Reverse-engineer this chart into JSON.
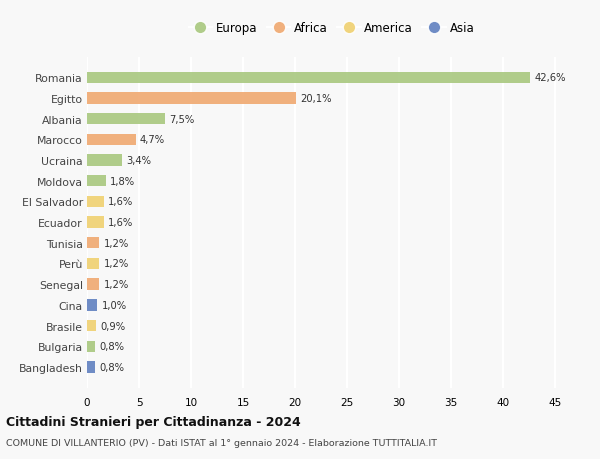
{
  "countries": [
    "Romania",
    "Egitto",
    "Albania",
    "Marocco",
    "Ucraina",
    "Moldova",
    "El Salvador",
    "Ecuador",
    "Tunisia",
    "Perù",
    "Senegal",
    "Cina",
    "Brasile",
    "Bulgaria",
    "Bangladesh"
  ],
  "values": [
    42.6,
    20.1,
    7.5,
    4.7,
    3.4,
    1.8,
    1.6,
    1.6,
    1.2,
    1.2,
    1.2,
    1.0,
    0.9,
    0.8,
    0.8
  ],
  "labels": [
    "42,6%",
    "20,1%",
    "7,5%",
    "4,7%",
    "3,4%",
    "1,8%",
    "1,6%",
    "1,6%",
    "1,2%",
    "1,2%",
    "1,2%",
    "1,0%",
    "0,9%",
    "0,8%",
    "0,8%"
  ],
  "continents": [
    "Europa",
    "Africa",
    "Europa",
    "Africa",
    "Europa",
    "Europa",
    "America",
    "America",
    "Africa",
    "America",
    "Africa",
    "Asia",
    "America",
    "Europa",
    "Asia"
  ],
  "colors": {
    "Europa": "#a8c87e",
    "Africa": "#f0a870",
    "America": "#f0d070",
    "Asia": "#6080c0"
  },
  "xlim": [
    0,
    47
  ],
  "xticks": [
    0,
    5,
    10,
    15,
    20,
    25,
    30,
    35,
    40,
    45
  ],
  "title": "Cittadini Stranieri per Cittadinanza - 2024",
  "subtitle": "COMUNE DI VILLANTERIO (PV) - Dati ISTAT al 1° gennaio 2024 - Elaborazione TUTTITALIA.IT",
  "background_color": "#f8f8f8",
  "grid_color": "#ffffff",
  "bar_height": 0.55,
  "legend_order": [
    "Europa",
    "Africa",
    "America",
    "Asia"
  ]
}
